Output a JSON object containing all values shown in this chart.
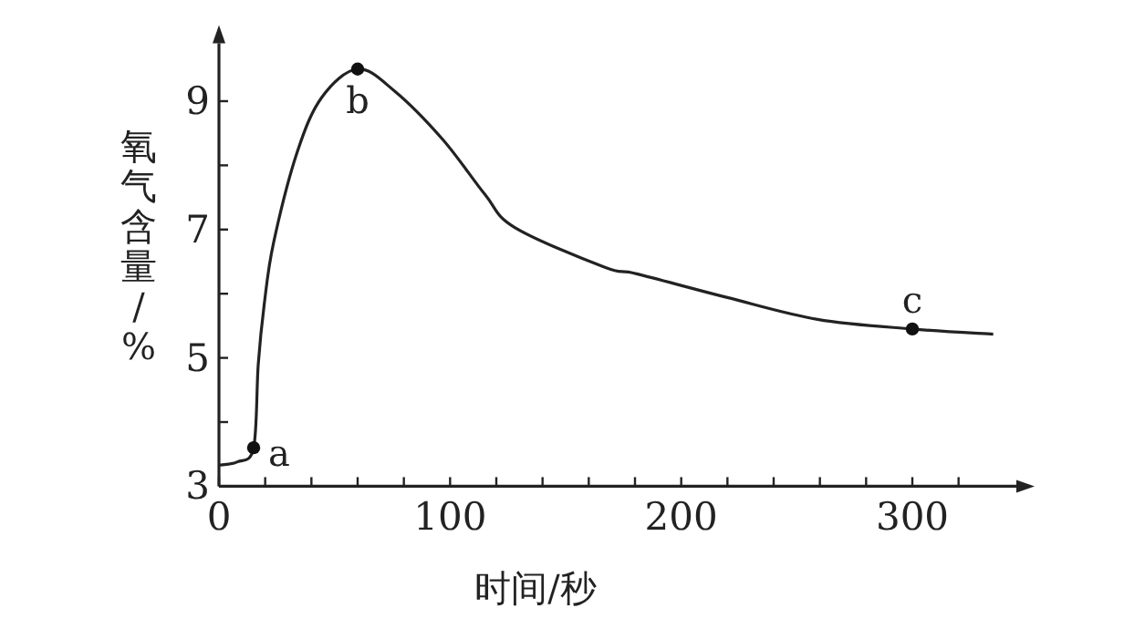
{
  "chart_data": {
    "type": "line",
    "xlabel": "时间/秒",
    "ylabel": "氧气含量/%",
    "color": "#222222",
    "x": [
      0,
      8,
      15,
      17,
      19.6,
      23.6,
      33.8,
      44.5,
      60,
      75.9,
      96.9,
      115,
      128,
      167,
      180.7,
      220,
      259,
      300,
      335
    ],
    "values": [
      3.33,
      3.38,
      3.6,
      4.9,
      5.84,
      6.79,
      8.2,
      9.06,
      9.5,
      9.16,
      8.4,
      7.55,
      7.03,
      6.41,
      6.31,
      5.94,
      5.6,
      5.45,
      5.37
    ],
    "xlim": [
      0,
      345
    ],
    "ylim": [
      3,
      9.9
    ],
    "xticks": [
      0,
      {
        "value": 20,
        "label": null
      },
      {
        "value": 40,
        "label": null
      },
      {
        "value": 60,
        "label": null
      },
      {
        "value": 80,
        "label": null
      },
      100,
      {
        "value": 120,
        "label": null
      },
      {
        "value": 140,
        "label": null
      },
      {
        "value": 160,
        "label": null
      },
      {
        "value": 180,
        "label": null
      },
      200,
      {
        "value": 220,
        "label": null
      },
      {
        "value": 240,
        "label": null
      },
      {
        "value": 260,
        "label": null
      },
      {
        "value": 280,
        "label": null
      },
      300,
      {
        "value": 320,
        "label": null
      }
    ],
    "yticks": [
      3,
      {
        "value": 4,
        "label": null
      },
      5,
      {
        "value": 6,
        "label": null
      },
      7,
      {
        "value": 8,
        "label": null
      },
      9
    ],
    "annotations": [
      {
        "text": "a",
        "x": 15,
        "y": 3.6
      },
      {
        "text": "b",
        "x": 60,
        "y": 9.5
      },
      {
        "text": "c",
        "x": 300,
        "y": 5.45
      }
    ]
  }
}
